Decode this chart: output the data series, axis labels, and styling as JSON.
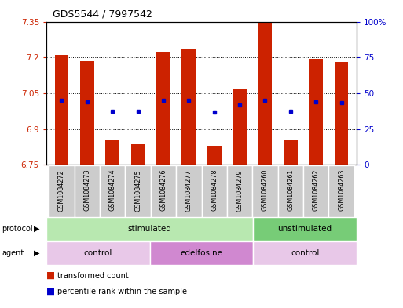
{
  "title": "GDS5544 / 7997542",
  "samples": [
    "GSM1084272",
    "GSM1084273",
    "GSM1084274",
    "GSM1084275",
    "GSM1084276",
    "GSM1084277",
    "GSM1084278",
    "GSM1084279",
    "GSM1084260",
    "GSM1084261",
    "GSM1084262",
    "GSM1084263"
  ],
  "bar_tops": [
    7.21,
    7.185,
    6.855,
    6.835,
    7.225,
    7.235,
    6.83,
    7.065,
    7.35,
    6.855,
    7.195,
    7.18
  ],
  "bar_bottoms": [
    6.75,
    6.75,
    6.75,
    6.75,
    6.75,
    6.75,
    6.75,
    6.75,
    6.75,
    6.75,
    6.75,
    6.75
  ],
  "dot_values": [
    7.02,
    7.015,
    6.975,
    6.975,
    7.02,
    7.02,
    6.97,
    7.0,
    7.02,
    6.975,
    7.015,
    7.01
  ],
  "ylim_left": [
    6.75,
    7.35
  ],
  "ylim_right": [
    0,
    100
  ],
  "yticks_left": [
    6.75,
    6.9,
    7.05,
    7.2,
    7.35
  ],
  "yticks_right": [
    0,
    25,
    50,
    75,
    100
  ],
  "ytick_labels_left": [
    "6.75",
    "6.9",
    "7.05",
    "7.2",
    "7.35"
  ],
  "ytick_labels_right": [
    "0",
    "25",
    "50",
    "75",
    "100%"
  ],
  "bar_color": "#cc2200",
  "dot_color": "#0000cc",
  "background_color": "#ffffff",
  "protocol_groups": [
    {
      "label": "stimulated",
      "start": 0,
      "end": 8,
      "color": "#b8e8b0"
    },
    {
      "label": "unstimulated",
      "start": 8,
      "end": 12,
      "color": "#77cc77"
    }
  ],
  "agent_groups": [
    {
      "label": "control",
      "start": 0,
      "end": 4,
      "color": "#e8c8e8"
    },
    {
      "label": "edelfosine",
      "start": 4,
      "end": 8,
      "color": "#d088d0"
    },
    {
      "label": "control",
      "start": 8,
      "end": 12,
      "color": "#e8c8e8"
    }
  ],
  "legend_items": [
    {
      "label": "transformed count",
      "color": "#cc2200"
    },
    {
      "label": "percentile rank within the sample",
      "color": "#0000cc"
    }
  ],
  "sample_bg_color": "#cccccc",
  "sample_border_color": "#ffffff",
  "grid_linestyle": ":",
  "grid_color": "#000000",
  "grid_linewidth": 0.7
}
